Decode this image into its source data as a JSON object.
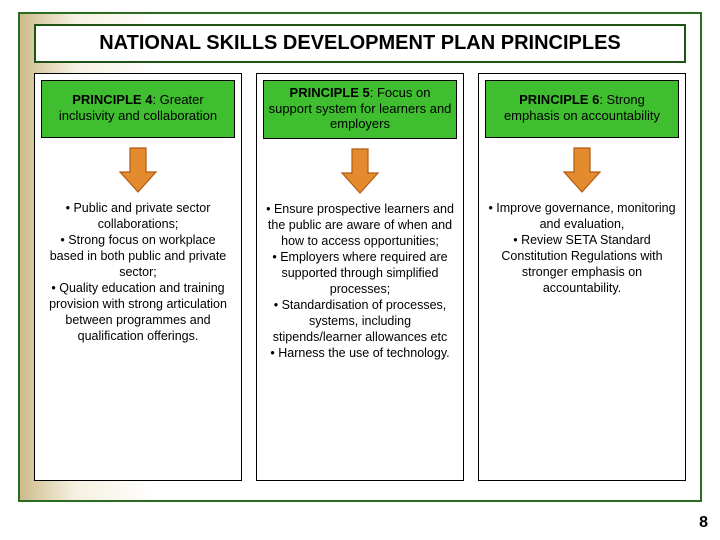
{
  "title": "NATIONAL SKILLS DEVELOPMENT PLAN PRINCIPLES",
  "page_number": "8",
  "colors": {
    "frame_border": "#2a6d1f",
    "principle_bg": "#3fbf2f",
    "arrow_fill": "#e48b2f",
    "arrow_stroke": "#b05a10",
    "gradient_left": "#cdbb8c"
  },
  "columns": [
    {
      "principle_bold": "PRINCIPLE 4",
      "principle_rest": ": Greater inclusivity and collaboration",
      "bullets": "• Public and private sector collaborations;\n• Strong focus on workplace based in both public and private sector;\n• Quality education and training provision with strong articulation between programmes and qualification offerings."
    },
    {
      "principle_bold": "PRINCIPLE 5",
      "principle_rest": ": Focus on support system for learners and employers",
      "bullets": "• Ensure prospective learners and the public are aware of when and how to access opportunities;\n• Employers where required are supported through simplified processes;\n• Standardisation of processes, systems, including stipends/learner allowances etc\n• Harness the use of technology."
    },
    {
      "principle_bold": "PRINCIPLE 6",
      "principle_rest": ": Strong emphasis on accountability",
      "bullets": "• Improve governance, monitoring and evaluation,\n• Review SETA Standard Constitution Regulations with stronger emphasis on accountability."
    }
  ]
}
